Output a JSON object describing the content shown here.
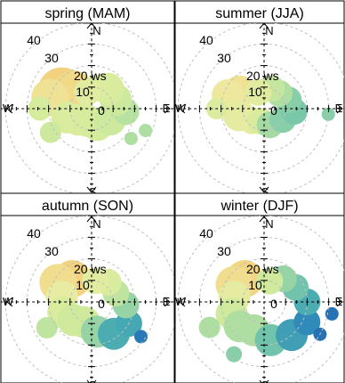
{
  "chart_data": {
    "type": "heatmap",
    "description": "polar plot",
    "panels": [
      {
        "strip": "spring (MAM)",
        "key": "spring",
        "blobs": [
          {
            "dir": 300,
            "ws": 16,
            "spread": 18,
            "level": 0.05
          },
          {
            "dir": 315,
            "ws": 12,
            "spread": 15,
            "level": 0.08
          },
          {
            "dir": 285,
            "ws": 20,
            "spread": 14,
            "level": 0.12
          },
          {
            "dir": 250,
            "ws": 12,
            "spread": 12,
            "level": 0.3
          },
          {
            "dir": 230,
            "ws": 8,
            "spread": 12,
            "level": 0.28
          },
          {
            "dir": 200,
            "ws": 6,
            "spread": 12,
            "level": 0.3
          },
          {
            "dir": 160,
            "ws": 8,
            "spread": 12,
            "level": 0.32
          },
          {
            "dir": 120,
            "ws": 10,
            "spread": 12,
            "level": 0.36
          },
          {
            "dir": 95,
            "ws": 16,
            "spread": 10,
            "level": 0.42
          },
          {
            "dir": 70,
            "ws": 12,
            "spread": 12,
            "level": 0.36
          },
          {
            "dir": 40,
            "ws": 12,
            "spread": 12,
            "level": 0.3
          },
          {
            "dir": 15,
            "ws": 10,
            "spread": 10,
            "level": 0.28
          },
          {
            "dir": 345,
            "ws": 8,
            "spread": 10,
            "level": 0.25
          },
          {
            "dir": 270,
            "ws": 24,
            "spread": 9,
            "level": 0.32
          },
          {
            "dir": 240,
            "ws": 22,
            "spread": 8,
            "level": 0.36
          },
          {
            "dir": 127,
            "ws": 23,
            "spread": 5,
            "level": 0.45
          },
          {
            "dir": 112,
            "ws": 27,
            "spread": 5,
            "level": 0.45
          }
        ]
      },
      {
        "strip": "summer (JJA)",
        "key": "summer",
        "blobs": [
          {
            "dir": 305,
            "ws": 14,
            "spread": 12,
            "level": 0.12
          },
          {
            "dir": 290,
            "ws": 18,
            "spread": 12,
            "level": 0.15
          },
          {
            "dir": 255,
            "ws": 12,
            "spread": 12,
            "level": 0.22
          },
          {
            "dir": 225,
            "ws": 8,
            "spread": 10,
            "level": 0.22
          },
          {
            "dir": 195,
            "ws": 6,
            "spread": 10,
            "level": 0.3
          },
          {
            "dir": 160,
            "ws": 8,
            "spread": 10,
            "level": 0.48
          },
          {
            "dir": 120,
            "ws": 10,
            "spread": 10,
            "level": 0.55
          },
          {
            "dir": 95,
            "ws": 14,
            "spread": 10,
            "level": 0.58
          },
          {
            "dir": 70,
            "ws": 12,
            "spread": 10,
            "level": 0.55
          },
          {
            "dir": 45,
            "ws": 10,
            "spread": 10,
            "level": 0.45
          },
          {
            "dir": 20,
            "ws": 10,
            "spread": 10,
            "level": 0.38
          },
          {
            "dir": 340,
            "ws": 8,
            "spread": 10,
            "level": 0.25
          },
          {
            "dir": 270,
            "ws": 22,
            "spread": 8,
            "level": 0.28
          },
          {
            "dir": 95,
            "ws": 30,
            "spread": 5,
            "level": 0.55
          }
        ]
      },
      {
        "strip": "autumn (SON)",
        "key": "autumn",
        "blobs": [
          {
            "dir": 320,
            "ws": 14,
            "spread": 14,
            "level": 0.05
          },
          {
            "dir": 300,
            "ws": 18,
            "spread": 14,
            "level": 0.1
          },
          {
            "dir": 280,
            "ws": 14,
            "spread": 12,
            "level": 0.2
          },
          {
            "dir": 250,
            "ws": 14,
            "spread": 12,
            "level": 0.3
          },
          {
            "dir": 225,
            "ws": 12,
            "spread": 12,
            "level": 0.35
          },
          {
            "dir": 200,
            "ws": 10,
            "spread": 12,
            "level": 0.35
          },
          {
            "dir": 170,
            "ws": 14,
            "spread": 12,
            "level": 0.52
          },
          {
            "dir": 145,
            "ws": 18,
            "spread": 12,
            "level": 0.7
          },
          {
            "dir": 120,
            "ws": 20,
            "spread": 10,
            "level": 0.72
          },
          {
            "dir": 95,
            "ws": 16,
            "spread": 10,
            "level": 0.52
          },
          {
            "dir": 70,
            "ws": 12,
            "spread": 10,
            "level": 0.4
          },
          {
            "dir": 40,
            "ws": 12,
            "spread": 10,
            "level": 0.3
          },
          {
            "dir": 10,
            "ws": 10,
            "spread": 10,
            "level": 0.25
          },
          {
            "dir": 240,
            "ws": 24,
            "spread": 8,
            "level": 0.4
          },
          {
            "dir": 125,
            "ws": 28,
            "spread": 5,
            "level": 0.92
          }
        ]
      },
      {
        "strip": "winter (DJF)",
        "key": "winter",
        "blobs": [
          {
            "dir": 320,
            "ws": 14,
            "spread": 14,
            "level": 0.06
          },
          {
            "dir": 300,
            "ws": 16,
            "spread": 14,
            "level": 0.1
          },
          {
            "dir": 280,
            "ws": 14,
            "spread": 12,
            "level": 0.22
          },
          {
            "dir": 250,
            "ws": 16,
            "spread": 12,
            "level": 0.35
          },
          {
            "dir": 225,
            "ws": 16,
            "spread": 12,
            "level": 0.45
          },
          {
            "dir": 200,
            "ws": 14,
            "spread": 12,
            "level": 0.45
          },
          {
            "dir": 170,
            "ws": 18,
            "spread": 12,
            "level": 0.6
          },
          {
            "dir": 140,
            "ws": 20,
            "spread": 12,
            "level": 0.75
          },
          {
            "dir": 115,
            "ws": 22,
            "spread": 10,
            "level": 0.82
          },
          {
            "dir": 90,
            "ws": 20,
            "spread": 10,
            "level": 0.7
          },
          {
            "dir": 65,
            "ws": 16,
            "spread": 10,
            "level": 0.6
          },
          {
            "dir": 40,
            "ws": 14,
            "spread": 10,
            "level": 0.52
          },
          {
            "dir": 15,
            "ws": 10,
            "spread": 10,
            "level": 0.35
          },
          {
            "dir": 245,
            "ws": 28,
            "spread": 8,
            "level": 0.45
          },
          {
            "dir": 210,
            "ws": 28,
            "spread": 6,
            "level": 0.55
          },
          {
            "dir": 100,
            "ws": 32,
            "spread": 5,
            "level": 0.95
          },
          {
            "dir": 120,
            "ws": 30,
            "spread": 5,
            "level": 0.95
          }
        ]
      }
    ],
    "rings": [
      10,
      20,
      30,
      40
    ],
    "ring_labels": [
      "10",
      "20 ws",
      "30",
      "40"
    ],
    "zero_label": "0",
    "compass": {
      "n": "N",
      "e": "E",
      "s": "S",
      "w": "W"
    },
    "rmax": 40,
    "colorscale": [
      "#f6c76f",
      "#edeca3",
      "#d4ec9c",
      "#9fd8a5",
      "#52b7af",
      "#2d87bb",
      "#2369b2"
    ],
    "grid": true
  }
}
